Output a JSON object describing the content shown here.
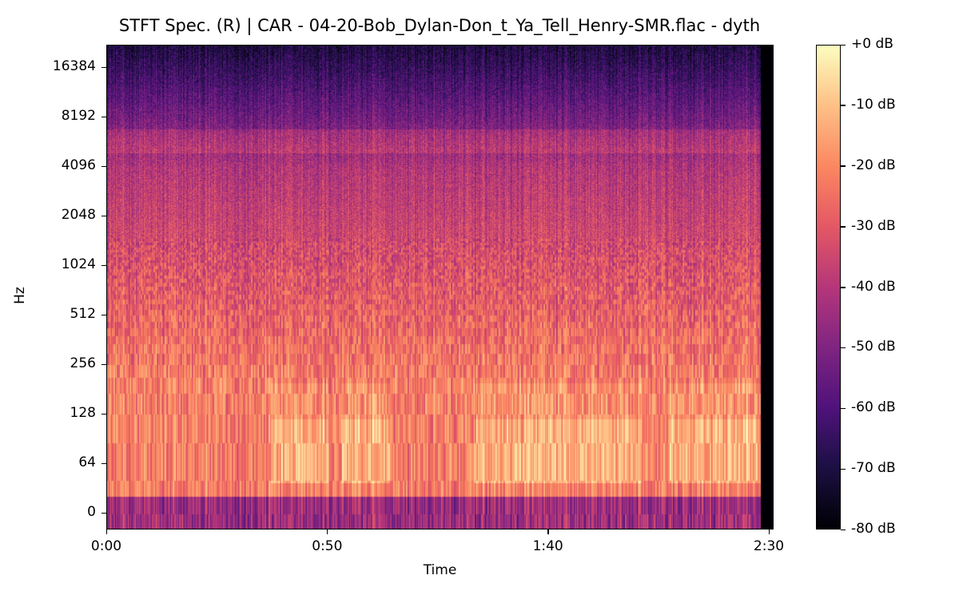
{
  "chart_data": {
    "type": "heatmap",
    "title": "STFT Spec. (R) | CAR - 04-20-Bob_Dylan-Don_t_Ya_Tell_Henry-SMR.flac - dyth",
    "xlabel": "Time",
    "ylabel": "Hz",
    "x_range_seconds": [
      0,
      151
    ],
    "audio_end_seconds": 148,
    "y_scale": "symlog",
    "y_range_hz": [
      -20,
      22050
    ],
    "xticks": [
      {
        "value": 0,
        "label": "0:00"
      },
      {
        "value": 50,
        "label": "0:50"
      },
      {
        "value": 100,
        "label": "1:40"
      },
      {
        "value": 150,
        "label": "2:30"
      }
    ],
    "yticks": [
      {
        "value": 0,
        "label": "0"
      },
      {
        "value": 64,
        "label": "64"
      },
      {
        "value": 128,
        "label": "128"
      },
      {
        "value": 256,
        "label": "256"
      },
      {
        "value": 512,
        "label": "512"
      },
      {
        "value": 1024,
        "label": "1024"
      },
      {
        "value": 2048,
        "label": "2048"
      },
      {
        "value": 4096,
        "label": "4096"
      },
      {
        "value": 8192,
        "label": "8192"
      },
      {
        "value": 16384,
        "label": "16384"
      }
    ],
    "colorbar": {
      "colormap": "magma",
      "range_db": [
        -80,
        0
      ],
      "ticks": [
        {
          "value": 0,
          "label": "+0 dB"
        },
        {
          "value": -10,
          "label": "-10 dB"
        },
        {
          "value": -20,
          "label": "-20 dB"
        },
        {
          "value": -30,
          "label": "-30 dB"
        },
        {
          "value": -40,
          "label": "-40 dB"
        },
        {
          "value": -50,
          "label": "-50 dB"
        },
        {
          "value": -60,
          "label": "-60 dB"
        },
        {
          "value": -70,
          "label": "-70 dB"
        },
        {
          "value": -80,
          "label": "-80 dB"
        }
      ]
    },
    "bright_low_freq_segments_seconds": [
      [
        37,
        50
      ],
      [
        53,
        64
      ],
      [
        83,
        121
      ],
      [
        127,
        148
      ]
    ]
  }
}
